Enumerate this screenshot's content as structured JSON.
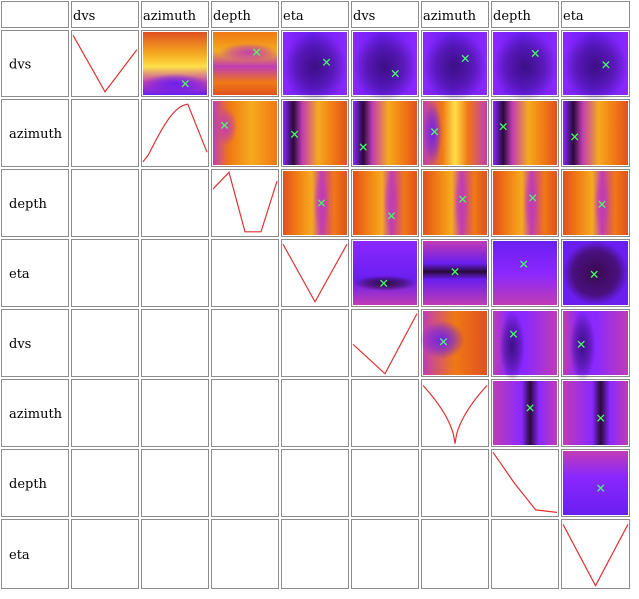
{
  "chart_data": {
    "type": "heatmap",
    "title": "",
    "xlabel": "",
    "ylabel": "",
    "column_labels": [
      "dvs",
      "azimuth",
      "depth",
      "eta",
      "dvs",
      "azimuth",
      "depth",
      "eta"
    ],
    "row_labels": [
      "dvs",
      "azimuth",
      "depth",
      "eta",
      "dvs",
      "azimuth",
      "depth",
      "eta"
    ],
    "layout": "upper-triangular matrix: diagonal cells are 1-D line profiles, cells above the diagonal are 2-D heatmaps with a marked minimum, cells below the diagonal are empty",
    "colormap": "dark purple (low) - violet - magenta - red - orange - yellow (high)",
    "line_color": "#dd3333",
    "marker": {
      "symbol": "×",
      "color": "#44ff66"
    },
    "diagonal_profiles": [
      {
        "row": 0,
        "col": 0,
        "y": [
          0.95,
          0.05,
          0.72
        ]
      },
      {
        "row": 1,
        "col": 1,
        "y": [
          0.05,
          0.72,
          0.95,
          0.2
        ]
      },
      {
        "row": 2,
        "col": 2,
        "y": [
          0.72,
          0.98,
          0.05,
          0.05,
          0.84
        ]
      },
      {
        "row": 3,
        "col": 3,
        "y": [
          0.95,
          0.05,
          0.95
        ]
      },
      {
        "row": 4,
        "col": 4,
        "y": [
          0.48,
          0.02,
          0.96
        ]
      },
      {
        "row": 5,
        "col": 5,
        "y": [
          0.93,
          0.02,
          0.93
        ]
      },
      {
        "row": 6,
        "col": 6,
        "y": [
          0.98,
          0.5,
          0.08,
          0.04
        ]
      },
      {
        "row": 7,
        "col": 7,
        "y": [
          0.95,
          0.02,
          0.95
        ]
      }
    ],
    "heatmap_cells": [
      {
        "row": 0,
        "col": 1,
        "minimum": [
          0.66,
          0.82
        ]
      },
      {
        "row": 0,
        "col": 2,
        "minimum": [
          0.68,
          0.32
        ]
      },
      {
        "row": 0,
        "col": 3,
        "minimum": [
          0.68,
          0.48
        ]
      },
      {
        "row": 0,
        "col": 4,
        "minimum": [
          0.66,
          0.66
        ]
      },
      {
        "row": 0,
        "col": 5,
        "minimum": [
          0.66,
          0.42
        ]
      },
      {
        "row": 0,
        "col": 6,
        "minimum": [
          0.66,
          0.34
        ]
      },
      {
        "row": 0,
        "col": 7,
        "minimum": [
          0.66,
          0.52
        ]
      },
      {
        "row": 1,
        "col": 2,
        "minimum": [
          0.18,
          0.38
        ]
      },
      {
        "row": 1,
        "col": 3,
        "minimum": [
          0.18,
          0.52
        ]
      },
      {
        "row": 1,
        "col": 4,
        "minimum": [
          0.16,
          0.72
        ]
      },
      {
        "row": 1,
        "col": 5,
        "minimum": [
          0.18,
          0.48
        ]
      },
      {
        "row": 1,
        "col": 6,
        "minimum": [
          0.16,
          0.4
        ]
      },
      {
        "row": 1,
        "col": 7,
        "minimum": [
          0.18,
          0.56
        ]
      },
      {
        "row": 2,
        "col": 3,
        "minimum": [
          0.6,
          0.5
        ]
      },
      {
        "row": 2,
        "col": 4,
        "minimum": [
          0.6,
          0.7
        ]
      },
      {
        "row": 2,
        "col": 5,
        "minimum": [
          0.62,
          0.44
        ]
      },
      {
        "row": 2,
        "col": 6,
        "minimum": [
          0.62,
          0.42
        ]
      },
      {
        "row": 2,
        "col": 7,
        "minimum": [
          0.6,
          0.52
        ]
      },
      {
        "row": 3,
        "col": 4,
        "minimum": [
          0.48,
          0.66
        ]
      },
      {
        "row": 3,
        "col": 5,
        "minimum": [
          0.5,
          0.48
        ]
      },
      {
        "row": 3,
        "col": 6,
        "minimum": [
          0.48,
          0.36
        ]
      },
      {
        "row": 3,
        "col": 7,
        "minimum": [
          0.48,
          0.52
        ]
      },
      {
        "row": 4,
        "col": 5,
        "minimum": [
          0.32,
          0.48
        ]
      },
      {
        "row": 4,
        "col": 6,
        "minimum": [
          0.32,
          0.36
        ]
      },
      {
        "row": 4,
        "col": 7,
        "minimum": [
          0.28,
          0.52
        ]
      },
      {
        "row": 5,
        "col": 6,
        "minimum": [
          0.58,
          0.42
        ]
      },
      {
        "row": 5,
        "col": 7,
        "minimum": [
          0.58,
          0.58
        ]
      },
      {
        "row": 6,
        "col": 7,
        "minimum": [
          0.58,
          0.58
        ]
      }
    ]
  }
}
